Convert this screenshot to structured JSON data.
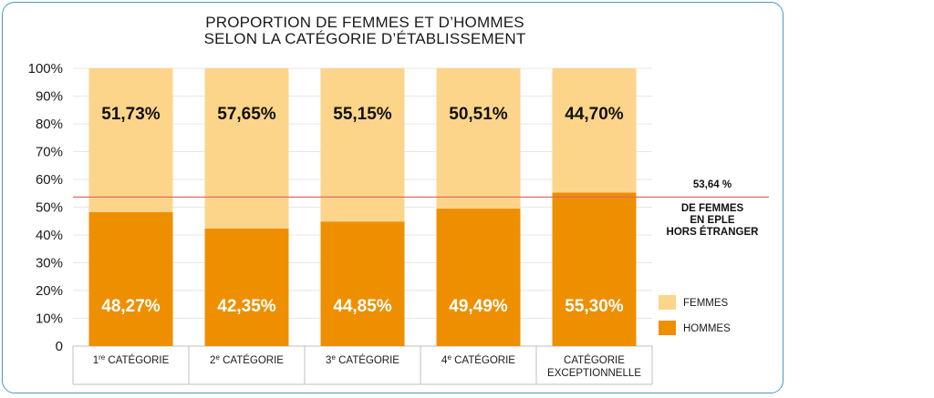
{
  "colors": {
    "femmes": "#fdd58a",
    "hommes": "#ee8f00",
    "reference_line": "#e06a6a",
    "frame": "#4a9bbd"
  },
  "chart_data": {
    "type": "bar",
    "stacked": true,
    "title_line1": "PROPORTION DE FEMMES ET D’HOMMES",
    "title_line2": "SELON LA CATÉGORIE D’ÉTABLISSEMENT",
    "categories": [
      {
        "base": "1",
        "sup": "re",
        "rest": " CATÉGORIE",
        "line2": ""
      },
      {
        "base": "2",
        "sup": "e",
        "rest": " CATÉGORIE",
        "line2": ""
      },
      {
        "base": "3",
        "sup": "e",
        "rest": " CATÉGORIE",
        "line2": ""
      },
      {
        "base": "4",
        "sup": "e",
        "rest": " CATÉGORIE",
        "line2": ""
      },
      {
        "base": "CATÉGORIE",
        "sup": "",
        "rest": "",
        "line2": "EXCEPTIONNELLE"
      }
    ],
    "series": [
      {
        "name": "HOMMES",
        "values": [
          48.27,
          42.35,
          44.85,
          49.49,
          55.3
        ],
        "labels": [
          "48,27%",
          "42,35%",
          "44,85%",
          "49,49%",
          "55,30%"
        ]
      },
      {
        "name": "FEMMES",
        "values": [
          51.73,
          57.65,
          55.15,
          50.51,
          44.7
        ],
        "labels": [
          "51,73%",
          "57,65%",
          "55,15%",
          "50,51%",
          "44,70%"
        ]
      }
    ],
    "ylim": [
      0,
      100
    ],
    "y_ticks": [
      "0",
      "10%",
      "20%",
      "30%",
      "40%",
      "50%",
      "60%",
      "70%",
      "80%",
      "90%",
      "100%"
    ],
    "reference_line": {
      "value": 53.64,
      "label_value": "53,64 %",
      "label_lines": [
        "DE FEMMES",
        "EN EPLE",
        "HORS ÉTRANGER"
      ]
    },
    "legend": [
      "FEMMES",
      "HOMMES"
    ],
    "legend_position": "right",
    "grid": true
  }
}
